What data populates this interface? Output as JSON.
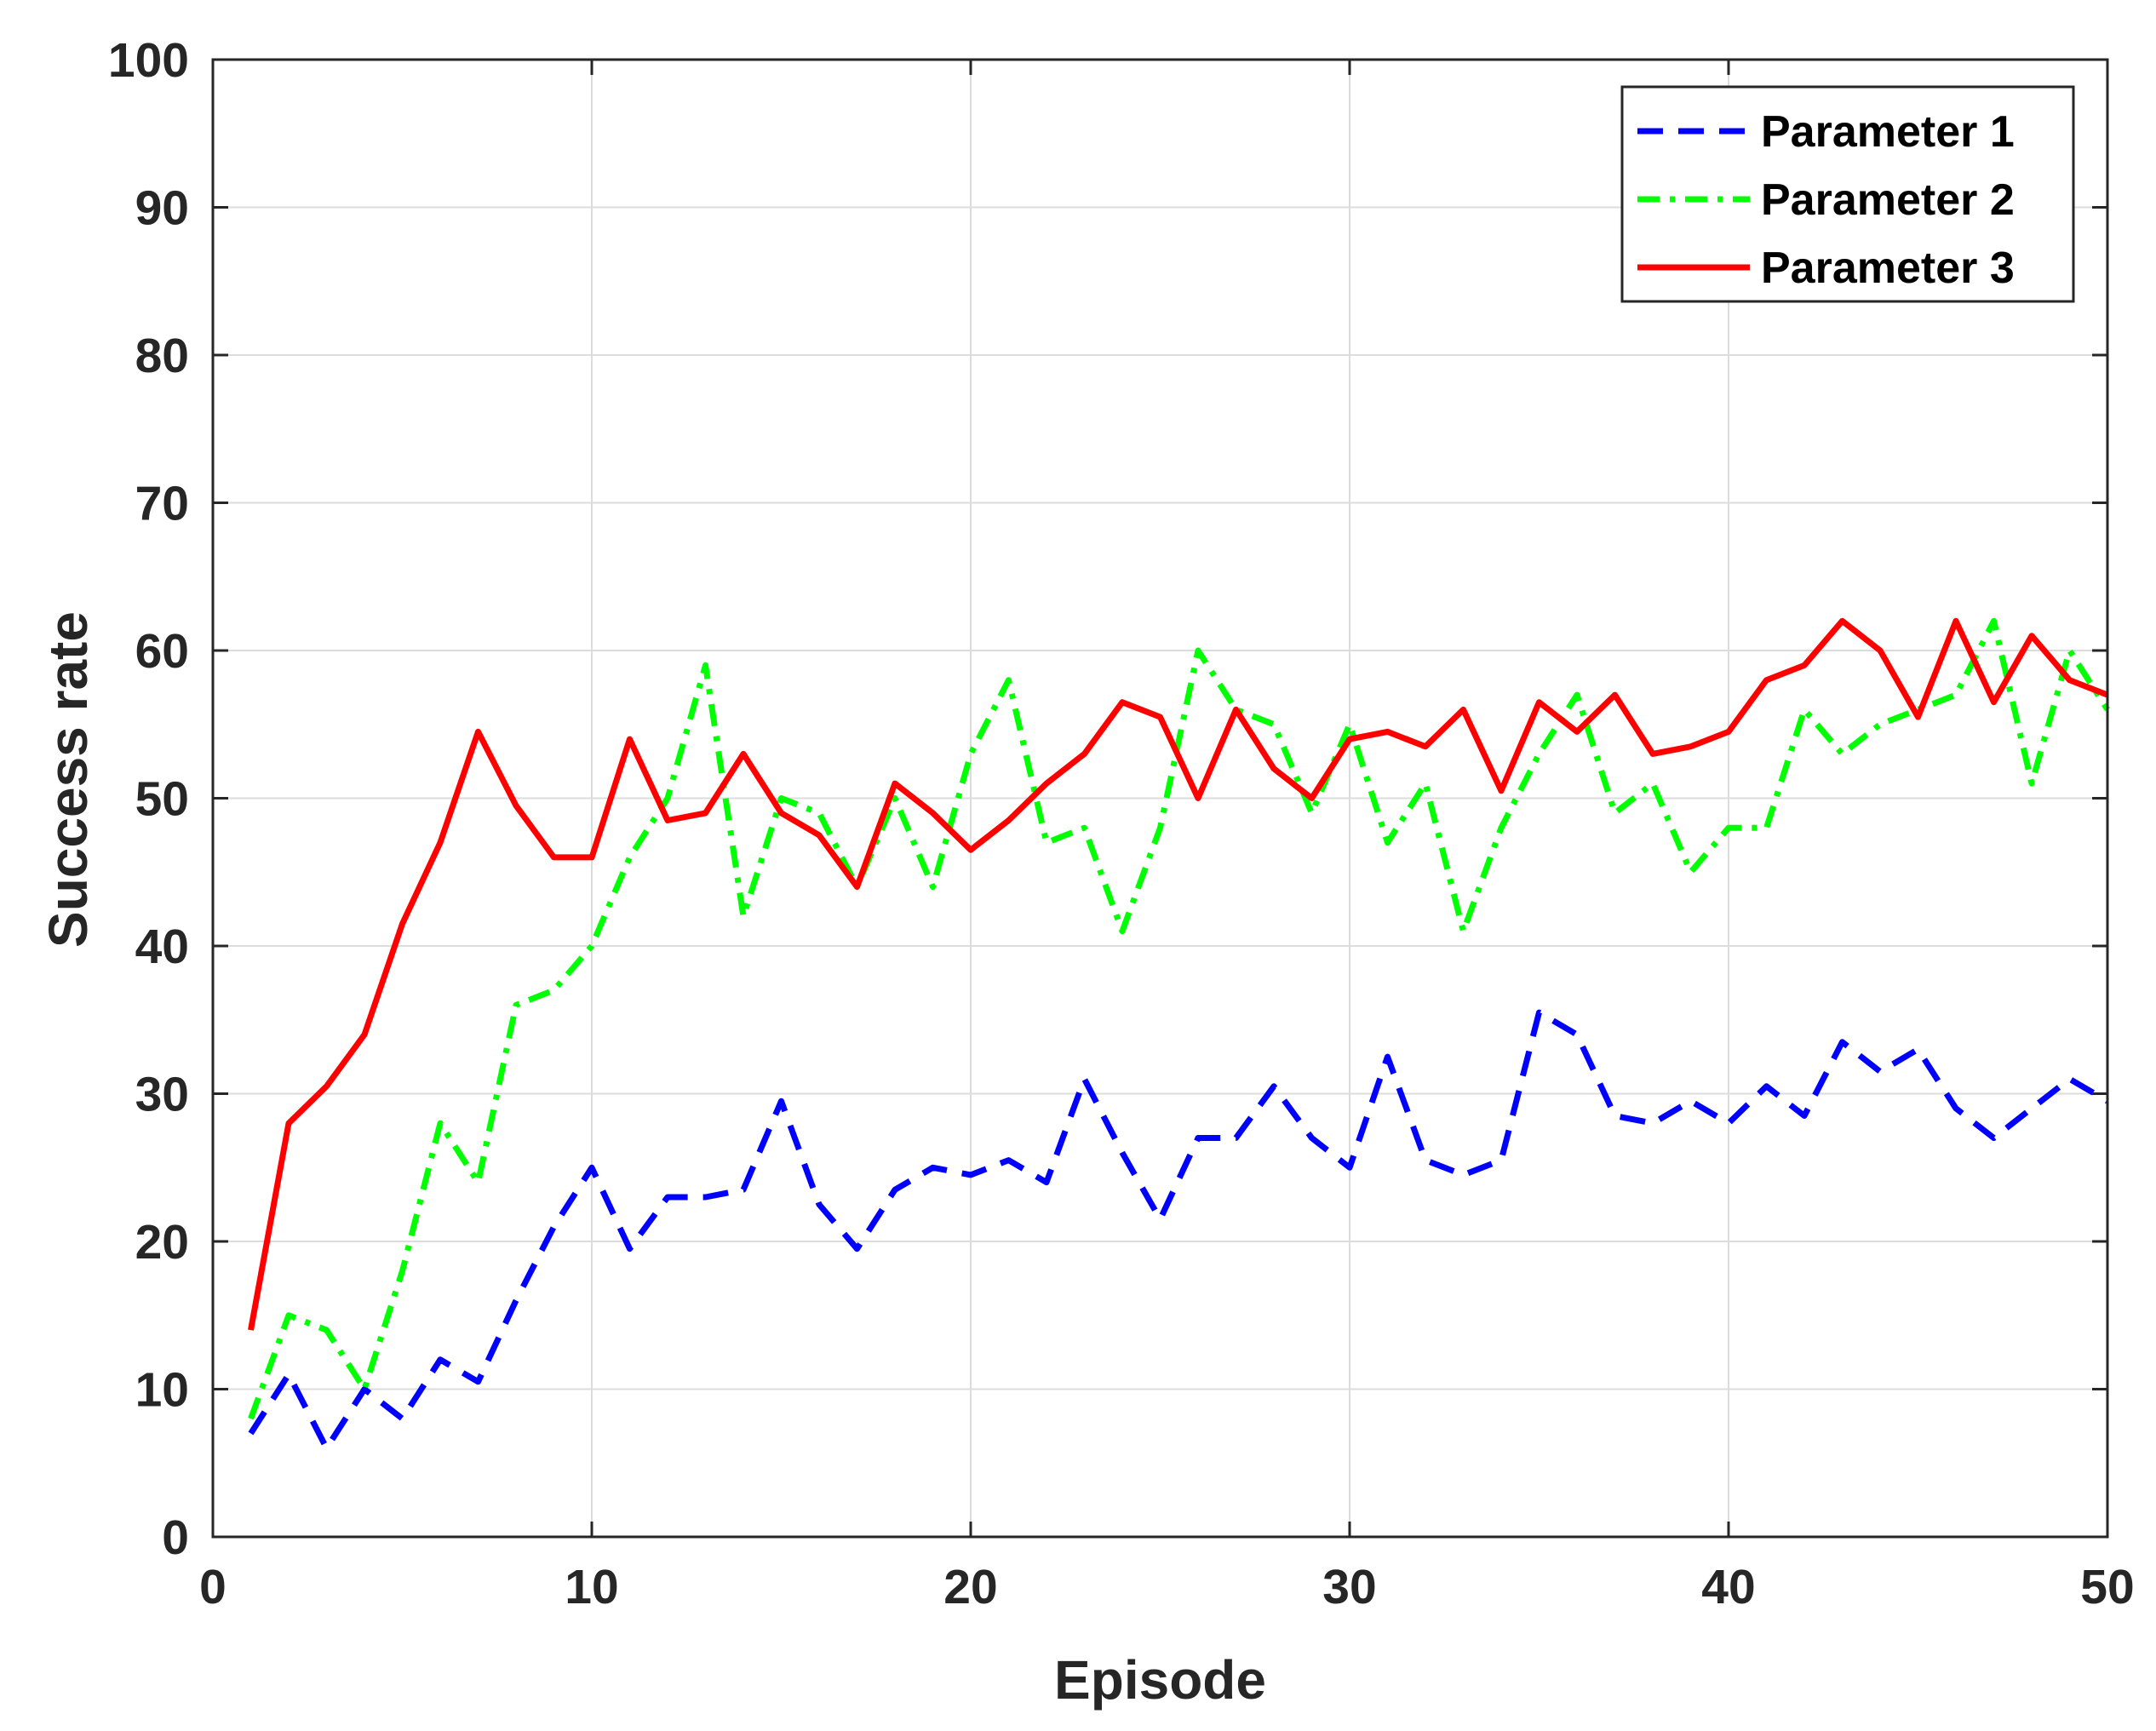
{
  "chart_data": {
    "type": "line",
    "title": "",
    "xlabel": "Episode",
    "ylabel": "Success rate",
    "xlim": [
      0,
      50
    ],
    "ylim": [
      0,
      100
    ],
    "xticks": [
      0,
      10,
      20,
      30,
      40,
      50
    ],
    "yticks": [
      0,
      10,
      20,
      30,
      40,
      50,
      60,
      70,
      80,
      90,
      100
    ],
    "grid": true,
    "legend_position": "top-right",
    "x": [
      1,
      2,
      3,
      4,
      5,
      6,
      7,
      8,
      9,
      10,
      11,
      12,
      13,
      14,
      15,
      16,
      17,
      18,
      19,
      20,
      21,
      22,
      23,
      24,
      25,
      26,
      27,
      28,
      29,
      30,
      31,
      32,
      33,
      34,
      35,
      36,
      37,
      38,
      39,
      40,
      41,
      42,
      43,
      44,
      45,
      46,
      47,
      48,
      49,
      50
    ],
    "series": [
      {
        "name": "Parameter 1",
        "color": "#0000ff",
        "dash": "dashed",
        "values": [
          7,
          11,
          6,
          10,
          8,
          12,
          10.5,
          16,
          21,
          25,
          19.5,
          23,
          23,
          23.5,
          29.5,
          22.5,
          19.5,
          23.5,
          25,
          24.5,
          25.5,
          24,
          31,
          26,
          21.5,
          27,
          27,
          30.5,
          27,
          25,
          32.5,
          25.5,
          24.5,
          25.5,
          35.5,
          34,
          28.5,
          28,
          29.5,
          28,
          30.5,
          28.5,
          33.5,
          31.5,
          33,
          29,
          27,
          29,
          31,
          29.5
        ]
      },
      {
        "name": "Parameter 2",
        "color": "#00ff00",
        "dash": "dashdot",
        "values": [
          8,
          15,
          14,
          10,
          18,
          28,
          24,
          36,
          37,
          40,
          46,
          50,
          59,
          42,
          50,
          49,
          44,
          50,
          44,
          53,
          58,
          47,
          48,
          41,
          48,
          60,
          56,
          55,
          49,
          55,
          47,
          51,
          41,
          48,
          53,
          57,
          49,
          51,
          45,
          48,
          48,
          56,
          53,
          55,
          56,
          57,
          62,
          51,
          60,
          56
        ]
      },
      {
        "name": "Parameter 3",
        "color": "#ff0000",
        "dash": "solid",
        "values": [
          14,
          28,
          30.5,
          34,
          41.5,
          47,
          54.5,
          49.5,
          46,
          46,
          54,
          48.5,
          49,
          53,
          49,
          47.5,
          44,
          51,
          49,
          46.5,
          48.5,
          51,
          53,
          56.5,
          55.5,
          50,
          56,
          52,
          50,
          54,
          54.5,
          53.5,
          56,
          50.5,
          56.5,
          54.5,
          57,
          53,
          53.5,
          54.5,
          58,
          59,
          62,
          60,
          55.5,
          62,
          56.5,
          61,
          58,
          57
        ]
      }
    ]
  }
}
